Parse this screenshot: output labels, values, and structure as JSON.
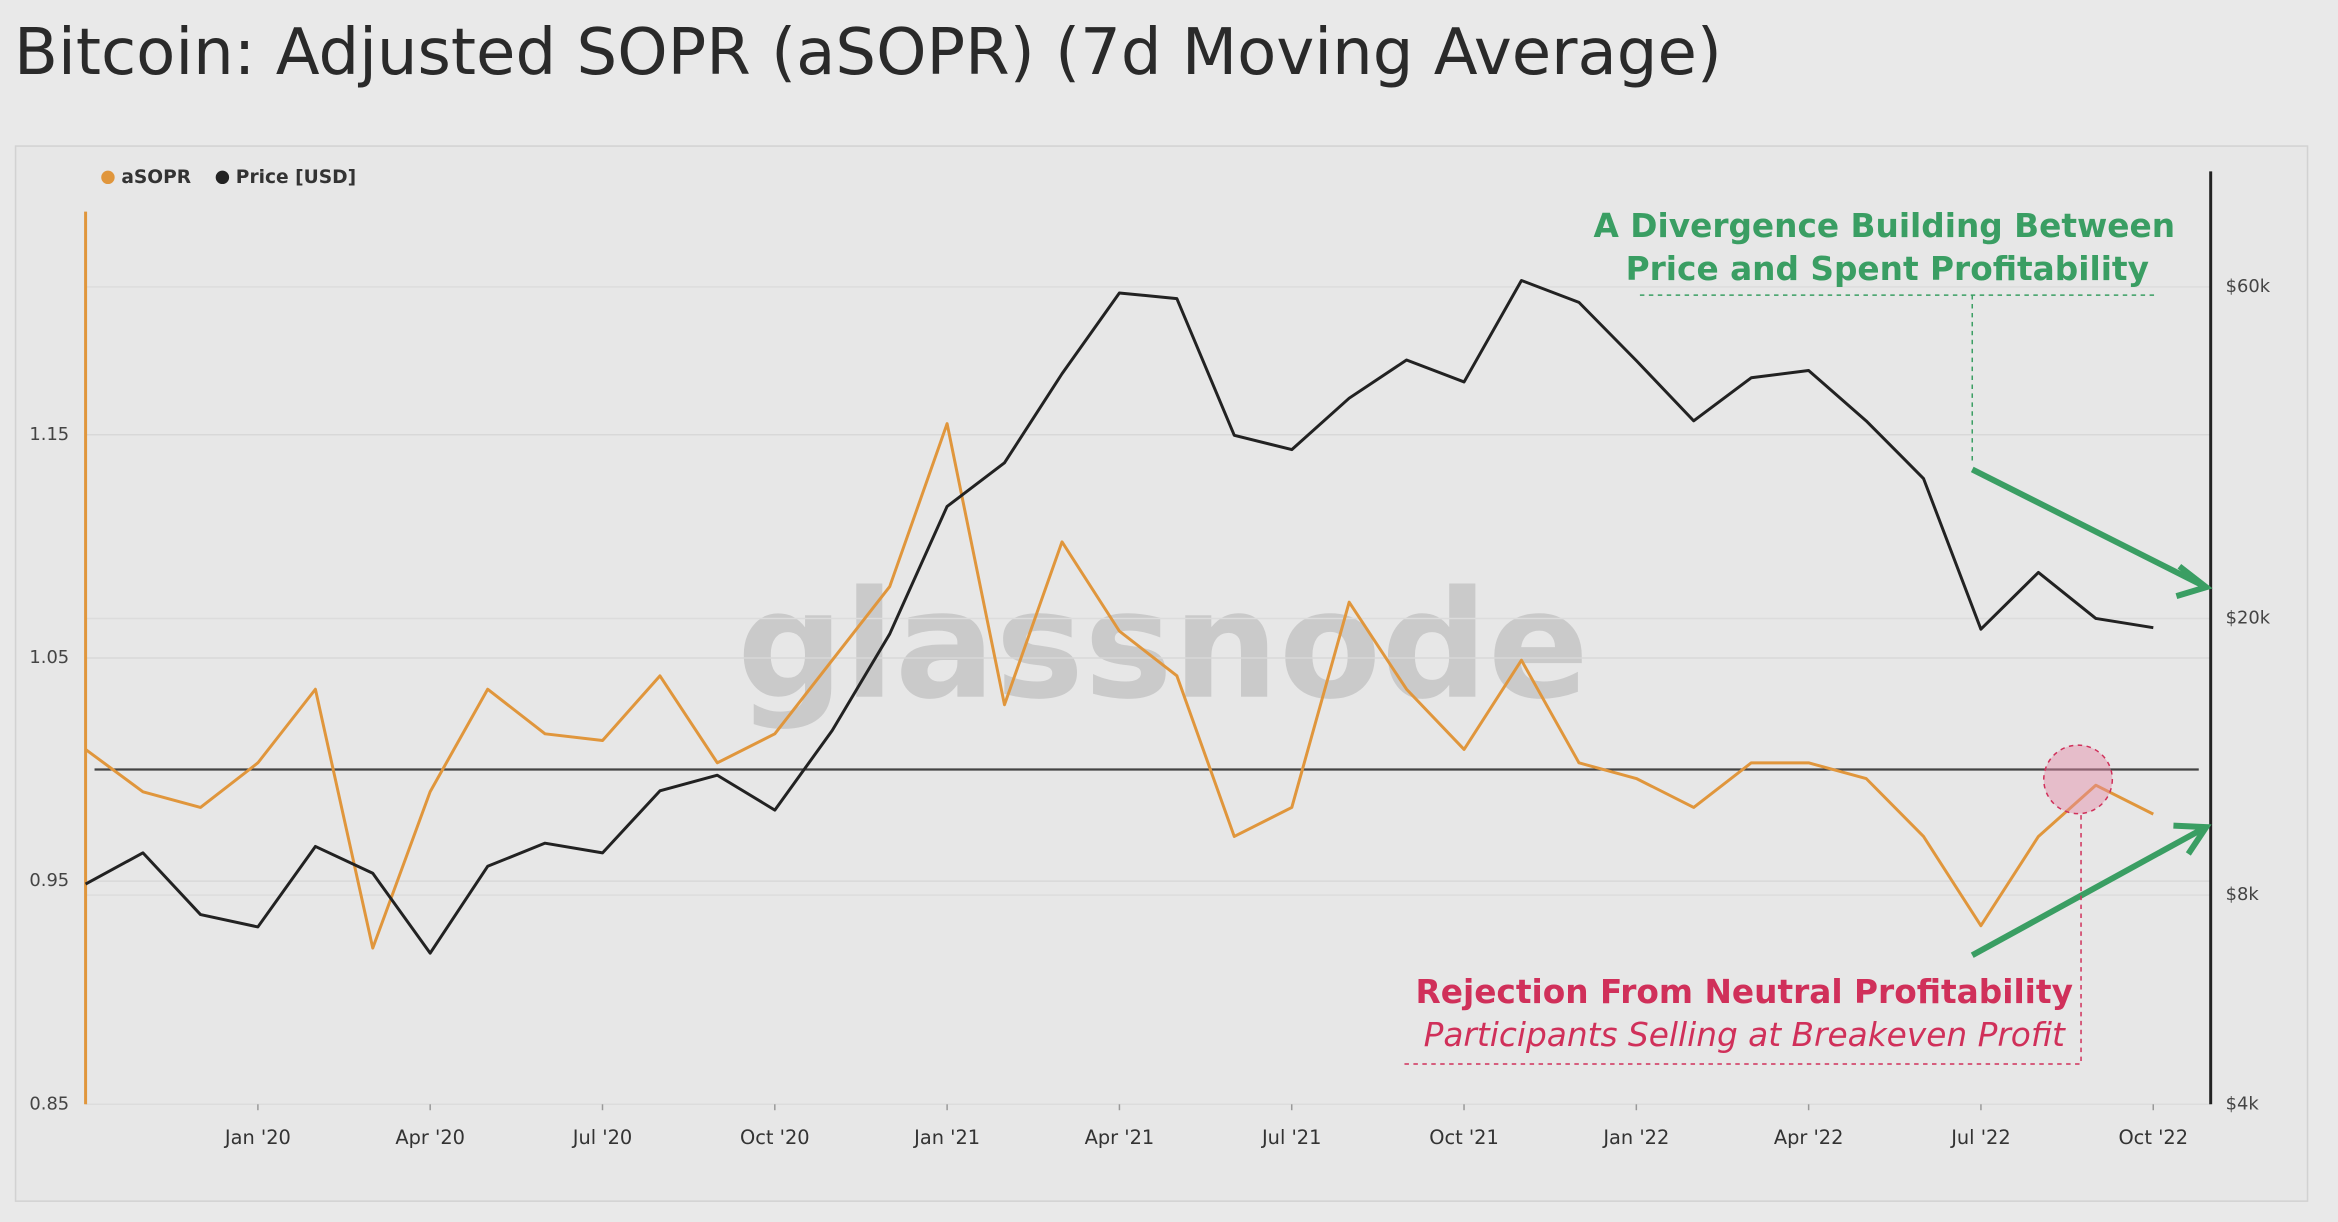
{
  "chart_data": {
    "type": "line",
    "title": "Bitcoin: Adjusted SOPR (aSOPR) (7d Moving Average)",
    "watermark": "glassnode",
    "x": [
      "2019-10",
      "2019-11",
      "2019-12",
      "2020-01",
      "2020-02",
      "2020-03",
      "2020-04",
      "2020-05",
      "2020-06",
      "2020-07",
      "2020-08",
      "2020-09",
      "2020-10",
      "2020-11",
      "2020-12",
      "2021-01",
      "2021-02",
      "2021-03",
      "2021-04",
      "2021-05",
      "2021-06",
      "2021-07",
      "2021-08",
      "2021-09",
      "2021-10",
      "2021-11",
      "2021-12",
      "2022-01",
      "2022-02",
      "2022-03",
      "2022-04",
      "2022-05",
      "2022-06",
      "2022-07",
      "2022-08",
      "2022-09",
      "2022-10"
    ],
    "xlim": [
      "2019-10",
      "2022-11"
    ],
    "xticks": [
      {
        "value": "2020-01",
        "label": "Jan '20"
      },
      {
        "value": "2020-04",
        "label": "Apr '20"
      },
      {
        "value": "2020-07",
        "label": "Jul '20"
      },
      {
        "value": "2020-10",
        "label": "Oct '20"
      },
      {
        "value": "2021-01",
        "label": "Jan '21"
      },
      {
        "value": "2021-04",
        "label": "Apr '21"
      },
      {
        "value": "2021-07",
        "label": "Jul '21"
      },
      {
        "value": "2021-10",
        "label": "Oct '21"
      },
      {
        "value": "2022-01",
        "label": "Jan '22"
      },
      {
        "value": "2022-04",
        "label": "Apr '22"
      },
      {
        "value": "2022-07",
        "label": "Jul '22"
      },
      {
        "value": "2022-10",
        "label": "Oct '22"
      }
    ],
    "ylim": [
      0.85,
      1.25
    ],
    "yticks": [
      0.85,
      0.95,
      1.05,
      1.15
    ],
    "y2lim": [
      4000,
      77000
    ],
    "y2_log": true,
    "y2ticks": [
      {
        "value": 4000,
        "label": "$4k"
      },
      {
        "value": 8000,
        "label": "$8k"
      },
      {
        "value": 20000,
        "label": "$20k"
      },
      {
        "value": 60000,
        "label": "$60k"
      }
    ],
    "reference_line": 1,
    "grid": true,
    "legend": "top-left",
    "series": [
      {
        "name": "aSOPR",
        "color": "#e0963c",
        "values": [
          1.009,
          0.99,
          0.983,
          1.003,
          1.036,
          0.92,
          0.99,
          1.036,
          1.016,
          1.013,
          1.042,
          1.003,
          1.016,
          1.049,
          1.082,
          1.155,
          1.029,
          1.102,
          1.062,
          1.042,
          0.97,
          0.983,
          1.075,
          1.036,
          1.009,
          1.049,
          1.003,
          0.996,
          0.983,
          1.003,
          1.003,
          0.996,
          0.97,
          0.93,
          0.97,
          0.993,
          0.98
        ]
      },
      {
        "name": "Price [USD]",
        "color": "#222222",
        "axis": "y2",
        "values": [
          8300,
          9200,
          7500,
          7200,
          9400,
          8600,
          6600,
          8800,
          9500,
          9200,
          11300,
          11900,
          10600,
          13800,
          19000,
          29000,
          33500,
          45000,
          58800,
          57700,
          36700,
          35000,
          41500,
          47100,
          43800,
          61300,
          57000,
          47000,
          38500,
          44400,
          45500,
          38500,
          31800,
          19300,
          23300,
          20000,
          19400
        ]
      }
    ],
    "annotations": [
      {
        "text": "A Divergence Building Between",
        "color": "#3a9e63"
      },
      {
        "text": "Price and Spent Profitability",
        "color": "#3a9e63"
      },
      {
        "text": "Rejection From Neutral Profitability",
        "color": "#d0305a"
      },
      {
        "text": "Participants Selling at Breakeven Profit",
        "color": "#d0305a"
      }
    ]
  }
}
